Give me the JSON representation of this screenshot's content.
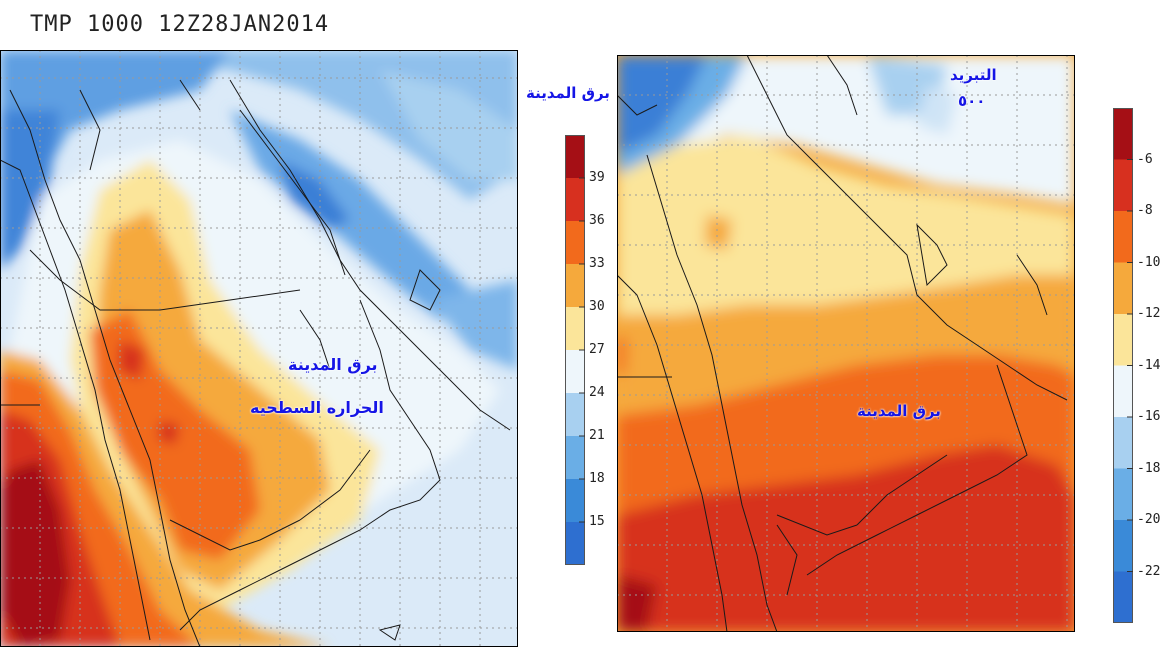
{
  "header": {
    "title": "TMP 1000 12Z28JAN2014"
  },
  "left_map": {
    "label_city": "برق المدينة",
    "label_surface_temp": "الحراره السطحيه",
    "colorbar": {
      "labels": [
        "39",
        "36",
        "33",
        "30",
        "27",
        "24",
        "21",
        "18",
        "15"
      ],
      "colors": [
        "#a50f15",
        "#d7301f",
        "#f26a1c",
        "#f5a93c",
        "#fbe59a",
        "#eef6fb",
        "#a8d0f0",
        "#6aaee6",
        "#3a8ad8",
        "#2e6fd0"
      ]
    }
  },
  "right_map": {
    "label_city_top": "برق المدينة",
    "label_cooling": "التبريد",
    "label_level": "٥٠٠",
    "label_city_center": "برق المدينة",
    "colorbar": {
      "labels": [
        "-6",
        "-8",
        "-10",
        "-12",
        "-14",
        "-16",
        "-18",
        "-20",
        "-22"
      ],
      "colors": [
        "#a50f15",
        "#d7301f",
        "#f26a1c",
        "#f5a93c",
        "#fbe59a",
        "#eef6fb",
        "#a8d0f0",
        "#6aaee6",
        "#3a8ad8",
        "#2e6fd0"
      ]
    }
  },
  "colors": {
    "label_blue": "#1515e6"
  }
}
